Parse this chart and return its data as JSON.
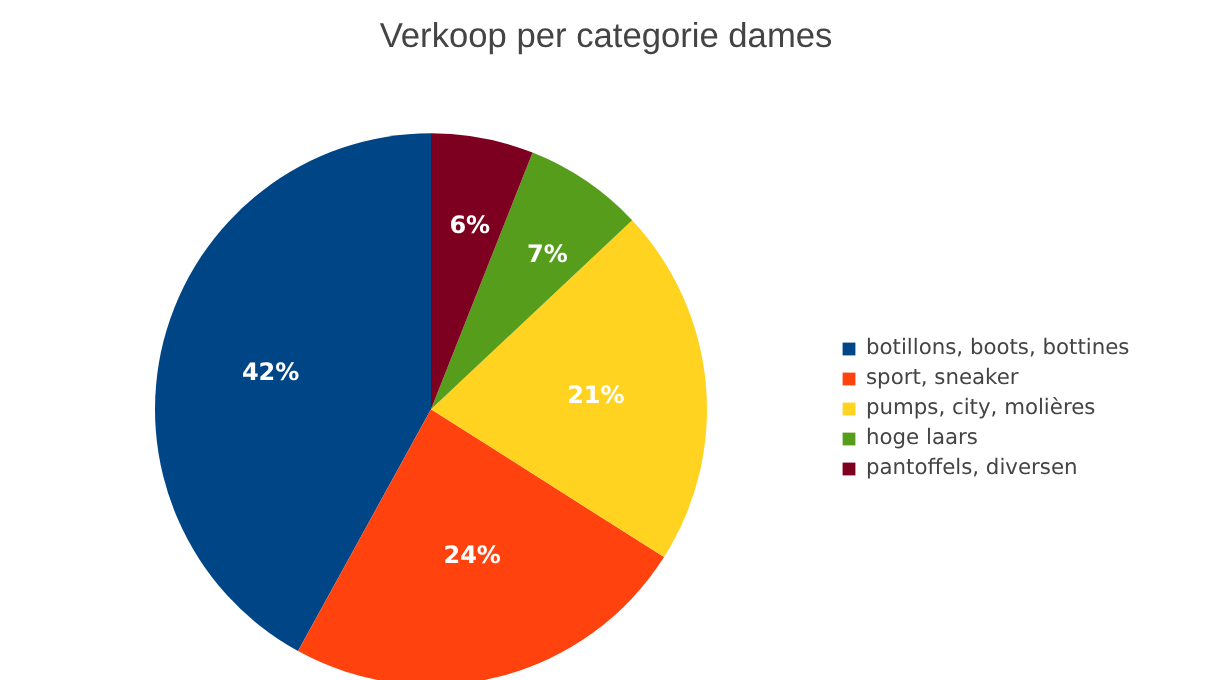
{
  "chart_data": {
    "type": "pie",
    "title": "Verkoop per categorie dames",
    "categories": [
      "botillons, boots, bottines",
      "sport, sneaker",
      "pumps, city, molières",
      "hoge laars",
      "pantoffels, diversen"
    ],
    "values": [
      42,
      24,
      21,
      7,
      6
    ],
    "colors": [
      "#004586",
      "#ff420e",
      "#ffd320",
      "#579d1c",
      "#7e0021"
    ],
    "value_labels": [
      "42%",
      "24%",
      "21%",
      "7%",
      "6%"
    ],
    "legend": "right"
  }
}
